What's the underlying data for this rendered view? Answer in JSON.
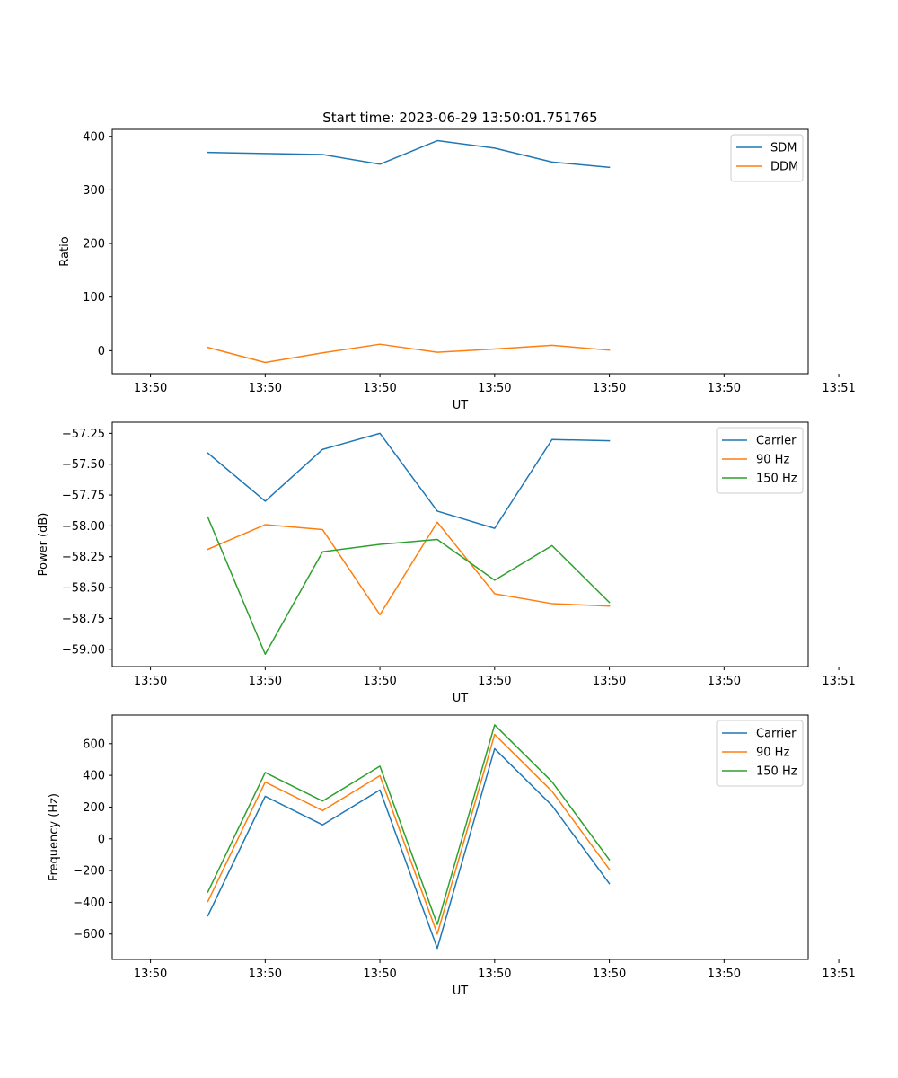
{
  "title": "Start time: 2023-06-29 13:50:01.751765",
  "chart_data": [
    {
      "type": "line",
      "xlabel": "UT",
      "ylabel": "Ratio",
      "xlim": [
        -0.5,
        8.6
      ],
      "ylim": [
        -43,
        413
      ],
      "x": [
        0.75,
        1.5,
        2.25,
        3.0,
        3.75,
        4.5,
        5.25,
        6.0
      ],
      "xticks": [
        0,
        1.5,
        3,
        4.5,
        6,
        7.5,
        9
      ],
      "xtick_labels": [
        "13:50",
        "13:50",
        "13:50",
        "13:50",
        "13:50",
        "13:50",
        "13:51"
      ],
      "yticks": [
        0,
        100,
        200,
        300,
        400
      ],
      "ytick_labels": [
        "0",
        "100",
        "200",
        "300",
        "400"
      ],
      "grid": false,
      "legend": "top-right",
      "series": [
        {
          "name": "SDM",
          "color": "#1f77b4",
          "values": [
            370,
            368,
            366,
            348,
            392,
            378,
            352,
            342
          ]
        },
        {
          "name": "DDM",
          "color": "#ff7f0e",
          "values": [
            6,
            -22,
            -4,
            12,
            -3,
            3,
            10,
            1
          ]
        }
      ]
    },
    {
      "type": "line",
      "xlabel": "UT",
      "ylabel": "Power (dB)",
      "xlim": [
        -0.5,
        8.6
      ],
      "ylim": [
        -59.14,
        -57.16
      ],
      "x": [
        0.75,
        1.5,
        2.25,
        3.0,
        3.75,
        4.5,
        5.25,
        6.0
      ],
      "xticks": [
        0,
        1.5,
        3,
        4.5,
        6,
        7.5,
        9
      ],
      "xtick_labels": [
        "13:50",
        "13:50",
        "13:50",
        "13:50",
        "13:50",
        "13:50",
        "13:51"
      ],
      "yticks": [
        -57.25,
        -57.5,
        -57.75,
        -58.0,
        -58.25,
        -58.5,
        -58.75,
        -59.0
      ],
      "ytick_labels": [
        "−57.25",
        "−57.50",
        "−57.75",
        "−58.00",
        "−58.25",
        "−58.50",
        "−58.75",
        "−59.00"
      ],
      "grid": false,
      "legend": "top-right",
      "series": [
        {
          "name": "Carrier",
          "color": "#1f77b4",
          "values": [
            -57.41,
            -57.8,
            -57.38,
            -57.25,
            -57.88,
            -58.02,
            -57.3,
            -57.31
          ]
        },
        {
          "name": "90 Hz",
          "color": "#ff7f0e",
          "values": [
            -58.19,
            -57.99,
            -58.03,
            -58.72,
            -57.97,
            -58.55,
            -58.63,
            -58.65
          ]
        },
        {
          "name": "150 Hz",
          "color": "#2ca02c",
          "values": [
            -57.93,
            -59.04,
            -58.21,
            -58.15,
            -58.11,
            -58.44,
            -58.16,
            -58.62
          ]
        }
      ]
    },
    {
      "type": "line",
      "xlabel": "UT",
      "ylabel": "Frequency (Hz)",
      "xlim": [
        -0.5,
        8.6
      ],
      "ylim": [
        -760,
        780
      ],
      "x": [
        0.75,
        1.5,
        2.25,
        3.0,
        3.75,
        4.5,
        5.25,
        6.0
      ],
      "xticks": [
        0,
        1.5,
        3,
        4.5,
        6,
        7.5,
        9
      ],
      "xtick_labels": [
        "13:50",
        "13:50",
        "13:50",
        "13:50",
        "13:50",
        "13:50",
        "13:51"
      ],
      "yticks": [
        -600,
        -400,
        -200,
        0,
        200,
        400,
        600
      ],
      "ytick_labels": [
        "−600",
        "−400",
        "−200",
        "0",
        "200",
        "400",
        "600"
      ],
      "grid": false,
      "legend": "top-right",
      "series": [
        {
          "name": "Carrier",
          "color": "#1f77b4",
          "values": [
            -485,
            268,
            88,
            308,
            -690,
            568,
            210,
            -282
          ]
        },
        {
          "name": "90 Hz",
          "color": "#ff7f0e",
          "values": [
            -395,
            358,
            178,
            398,
            -600,
            658,
            300,
            -192
          ]
        },
        {
          "name": "150 Hz",
          "color": "#2ca02c",
          "values": [
            -335,
            418,
            238,
            458,
            -540,
            718,
            360,
            -132
          ]
        }
      ]
    }
  ]
}
